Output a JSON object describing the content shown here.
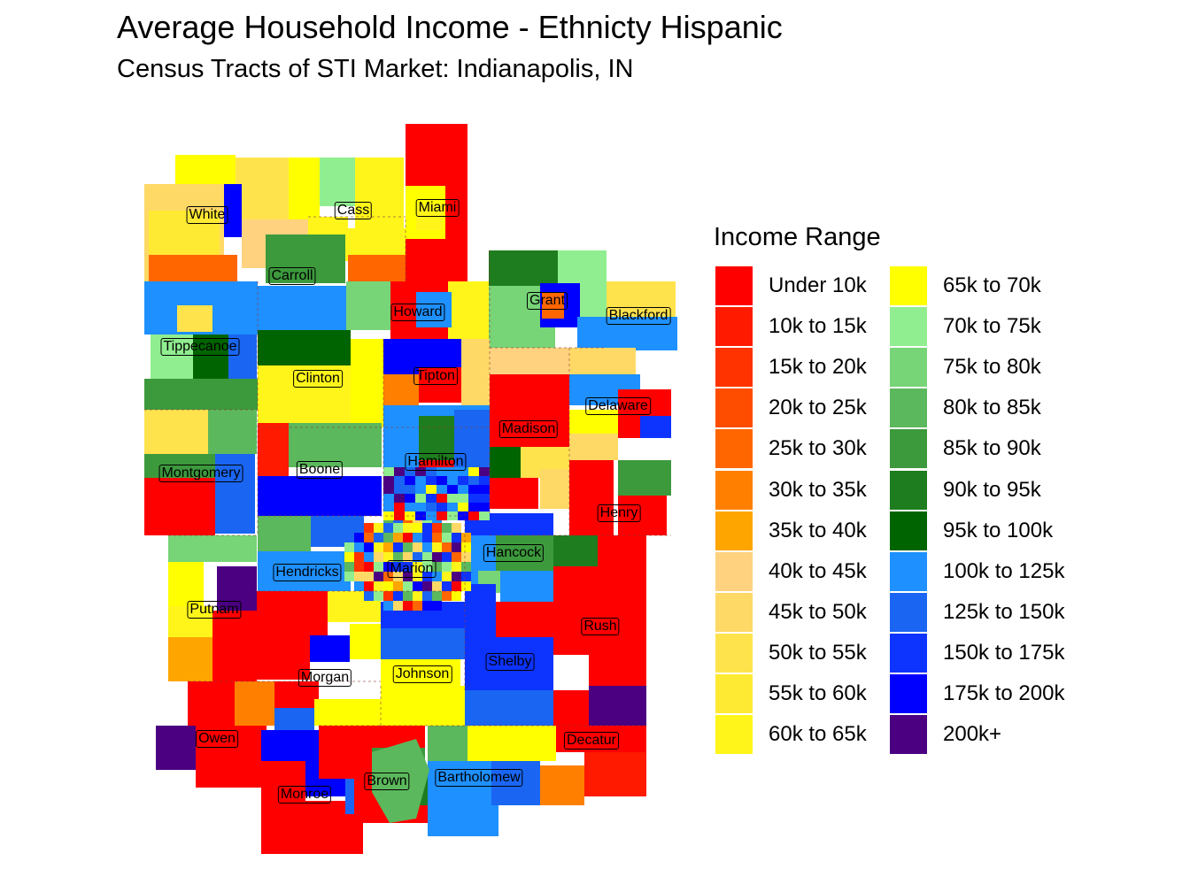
{
  "title": "Average Household Income - Ethnicty Hispanic",
  "subtitle": "Census Tracts of STI Market: Indianapolis, IN",
  "legend": {
    "title": "Income Range",
    "items": [
      {
        "label": "Under 10k",
        "color": "#FF0000"
      },
      {
        "label": "10k to 15k",
        "color": "#FF1A00"
      },
      {
        "label": "15k to 20k",
        "color": "#FF3300"
      },
      {
        "label": "20k to 25k",
        "color": "#FF4D00"
      },
      {
        "label": "25k to 30k",
        "color": "#FF6600"
      },
      {
        "label": "30k to 35k",
        "color": "#FF8000"
      },
      {
        "label": "35k to 40k",
        "color": "#FFA500"
      },
      {
        "label": "40k to 45k",
        "color": "#FFD27F"
      },
      {
        "label": "45k to 50k",
        "color": "#FFD966"
      },
      {
        "label": "50k to 55k",
        "color": "#FFE34D"
      },
      {
        "label": "55k to 60k",
        "color": "#FFEA33"
      },
      {
        "label": "60k to 65k",
        "color": "#FFF51A"
      },
      {
        "label": "65k to 70k",
        "color": "#FFFF00"
      },
      {
        "label": "70k to 75k",
        "color": "#90EE90"
      },
      {
        "label": "75k to 80k",
        "color": "#77D477"
      },
      {
        "label": "80k to 85k",
        "color": "#5CB85C"
      },
      {
        "label": "85k to 90k",
        "color": "#3C9A3C"
      },
      {
        "label": "90k to 95k",
        "color": "#1E7D1E"
      },
      {
        "label": "95k to 100k",
        "color": "#006400"
      },
      {
        "label": "100k to 125k",
        "color": "#1E90FF"
      },
      {
        "label": "125k to 150k",
        "color": "#1A66F2"
      },
      {
        "label": "150k to 175k",
        "color": "#0D33FF"
      },
      {
        "label": "175k to 200k",
        "color": "#0000FF"
      },
      {
        "label": "200k+",
        "color": "#4B0082"
      }
    ]
  },
  "counties": [
    {
      "name": "White"
    },
    {
      "name": "Cass"
    },
    {
      "name": "Miami"
    },
    {
      "name": "Carroll"
    },
    {
      "name": "Grant"
    },
    {
      "name": "Howard"
    },
    {
      "name": "Blackford"
    },
    {
      "name": "Tippecanoe"
    },
    {
      "name": "Clinton"
    },
    {
      "name": "Tipton"
    },
    {
      "name": "Delaware"
    },
    {
      "name": "Madison"
    },
    {
      "name": "Montgomery"
    },
    {
      "name": "Boone"
    },
    {
      "name": "Hamilton"
    },
    {
      "name": "Henry"
    },
    {
      "name": "Hancock"
    },
    {
      "name": "Hendricks"
    },
    {
      "name": "Marion"
    },
    {
      "name": "Putnam"
    },
    {
      "name": "Rush"
    },
    {
      "name": "Shelby"
    },
    {
      "name": "Morgan"
    },
    {
      "name": "Johnson"
    },
    {
      "name": "Owen"
    },
    {
      "name": "Decatur"
    },
    {
      "name": "Brown"
    },
    {
      "name": "Bartholomew"
    },
    {
      "name": "Monroe"
    }
  ]
}
